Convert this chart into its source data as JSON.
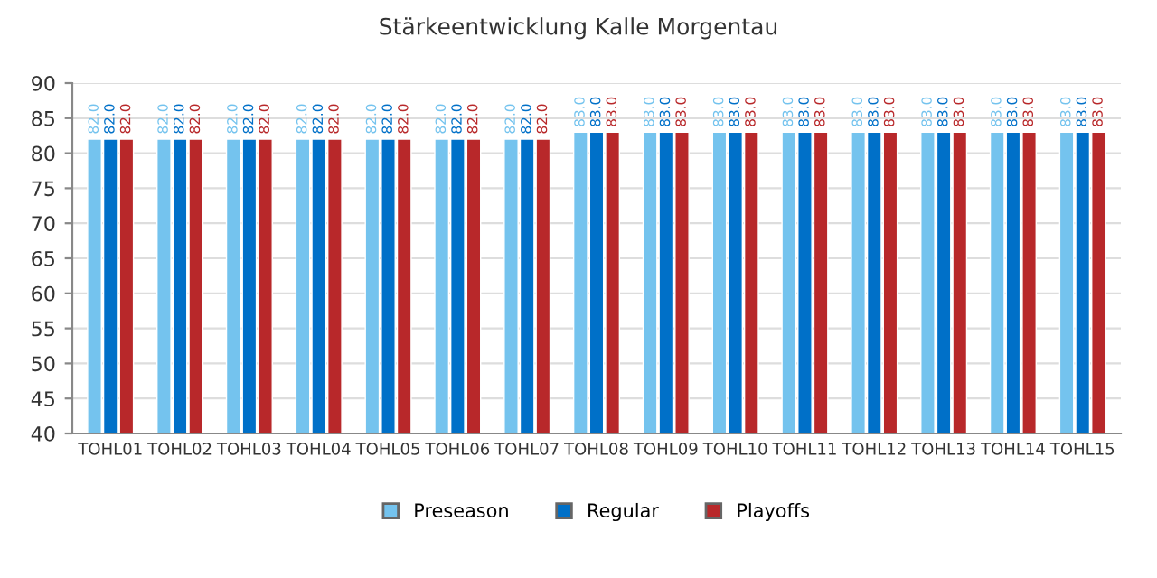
{
  "chart_data": {
    "type": "bar",
    "title": "Stärkeentwicklung Kalle Morgentau",
    "categories": [
      "TOHL01",
      "TOHL02",
      "TOHL03",
      "TOHL04",
      "TOHL05",
      "TOHL06",
      "TOHL07",
      "TOHL08",
      "TOHL09",
      "TOHL10",
      "TOHL11",
      "TOHL12",
      "TOHL13",
      "TOHL14",
      "TOHL15"
    ],
    "series": [
      {
        "name": "Preseason",
        "color": "#74c3ee",
        "values": [
          82,
          82,
          82,
          82,
          82,
          82,
          82,
          83,
          83,
          83,
          83,
          83,
          83,
          83,
          83
        ],
        "value_labels": [
          "82.0",
          "82.0",
          "82.0",
          "82.0",
          "82.0",
          "82.0",
          "82.0",
          "83.0",
          "83.0",
          "83.0",
          "83.0",
          "83.0",
          "83.0",
          "83.0",
          "83.0"
        ]
      },
      {
        "name": "Regular",
        "color": "#0070c8",
        "values": [
          82,
          82,
          82,
          82,
          82,
          82,
          82,
          83,
          83,
          83,
          83,
          83,
          83,
          83,
          83
        ],
        "value_labels": [
          "82.0",
          "82.0",
          "82.0",
          "82.0",
          "82.0",
          "82.0",
          "82.0",
          "83.0",
          "83.0",
          "83.0",
          "83.0",
          "83.0",
          "83.0",
          "83.0",
          "83.0"
        ]
      },
      {
        "name": "Playoffs",
        "color": "#b8282a",
        "values": [
          82,
          82,
          82,
          82,
          82,
          82,
          82,
          83,
          83,
          83,
          83,
          83,
          83,
          83,
          83
        ],
        "value_labels": [
          "82.0",
          "82.0",
          "82.0",
          "82.0",
          "82.0",
          "82.0",
          "82.0",
          "83.0",
          "83.0",
          "83.0",
          "83.0",
          "83.0",
          "83.0",
          "83.0",
          "83.0"
        ]
      }
    ],
    "ylim": [
      40,
      90
    ],
    "yticks": [
      40,
      45,
      50,
      55,
      60,
      65,
      70,
      75,
      80,
      85,
      90
    ],
    "grid": "y",
    "legend": "bottom"
  }
}
